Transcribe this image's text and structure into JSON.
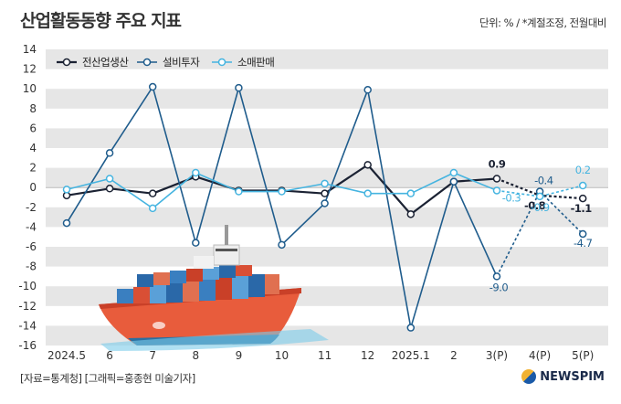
{
  "title": "산업활동동향 주요 지표",
  "unit_note": "단위: % / *계절조정, 전월대비",
  "footer": "[자료=통계청] [그래픽=홍종현 미술기자]",
  "brand": "NEWSPIM",
  "colors": {
    "production": "#1b2233",
    "investment": "#1f5c8c",
    "retail": "#45b4e0",
    "band": "#e6e6e6"
  },
  "chart_data": {
    "type": "line",
    "title": "산업활동동향 주요 지표",
    "categories": [
      "2024.5",
      "6",
      "7",
      "8",
      "9",
      "10",
      "11",
      "12",
      "2025.1",
      "2",
      "3(P)",
      "4(P)",
      "5(P)"
    ],
    "ylim": [
      -16,
      14
    ],
    "yticks": [
      14,
      12,
      10,
      8,
      6,
      4,
      2,
      0,
      -2,
      -4,
      -6,
      -8,
      -10,
      -12,
      -14,
      -16
    ],
    "legend_position": "top-left",
    "grid": "horizontal bands",
    "series": [
      {
        "name": "전산업생산",
        "values": [
          -0.8,
          -0.1,
          -0.6,
          1.1,
          -0.3,
          -0.3,
          -0.6,
          2.3,
          -2.7,
          0.6,
          0.9,
          -0.8,
          -1.1
        ],
        "dashed_from_index": 10,
        "labels": {
          "10": "0.9",
          "11": "-0.8",
          "12": "-1.1"
        }
      },
      {
        "name": "설비투자",
        "values": [
          -3.6,
          3.5,
          10.2,
          -5.6,
          10.1,
          -5.8,
          -1.6,
          9.9,
          -14.2,
          0.6,
          -9.0,
          -0.4,
          -4.7
        ],
        "dashed_from_index": 10,
        "labels": {
          "10": "-9.0",
          "11": "-0.4",
          "12": "-4.7"
        }
      },
      {
        "name": "소매판매",
        "values": [
          -0.2,
          0.9,
          -2.1,
          1.5,
          -0.4,
          -0.4,
          0.4,
          -0.6,
          -0.6,
          1.5,
          -0.3,
          -0.9,
          0.2
        ],
        "dashed_from_index": 10,
        "labels": {
          "10": "-0.3",
          "11": "-0.9",
          "12": "0.2"
        }
      }
    ]
  }
}
